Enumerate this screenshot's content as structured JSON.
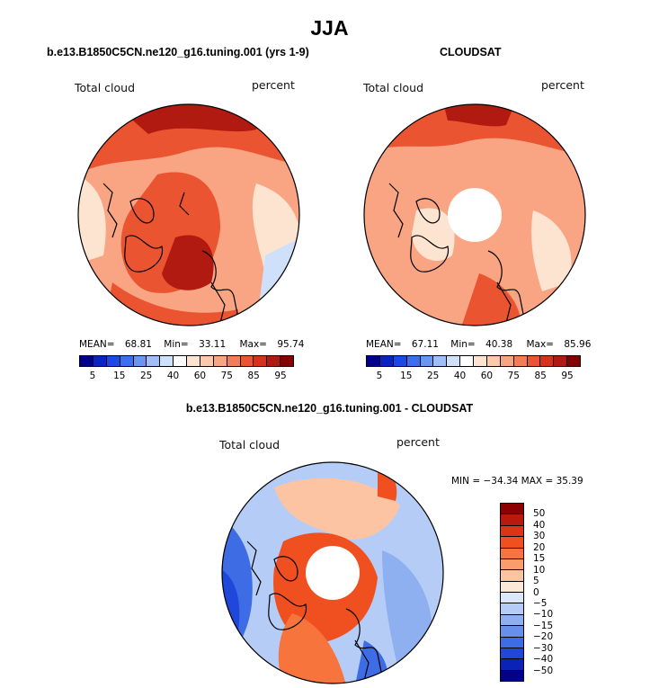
{
  "title": "JJA",
  "panels": [
    {
      "id": "model",
      "title": "b.e13.B1850C5CN.ne120_g16.tuning.001 (yrs 1-9)",
      "field_label": "Total cloud",
      "units_label": "percent",
      "mean_label": "MEAN=",
      "mean": "68.81",
      "min_label": "Min=",
      "min": "33.11",
      "max_label": "Max=",
      "max": "95.74"
    },
    {
      "id": "obs",
      "title": "CLOUDSAT",
      "field_label": "Total cloud",
      "units_label": "percent",
      "mean_label": "MEAN=",
      "mean": "67.11",
      "min_label": "Min=",
      "min": "40.38",
      "max_label": "Max=",
      "max": "85.96"
    }
  ],
  "abs_colorbar": {
    "colors": [
      "#00008b",
      "#0a24c2",
      "#1c48e4",
      "#3d6ef0",
      "#6b95f2",
      "#9fbef6",
      "#cfe1fa",
      "#ffffff",
      "#fde4d0",
      "#fcc9ab",
      "#f9a482",
      "#f47d57",
      "#ea5431",
      "#d4321a",
      "#b01a10",
      "#860000"
    ],
    "ticks": [
      "5",
      "15",
      "25",
      "40",
      "60",
      "75",
      "85",
      "95"
    ]
  },
  "diff_panel": {
    "title": "b.e13.B1850C5CN.ne120_g16.tuning.001 - CLOUDSAT",
    "field_label": "Total cloud",
    "units_label": "percent",
    "minmax_text": "MIN = −34.34  MAX =  35.39"
  },
  "diff_colorbar": {
    "colors": [
      "#8b0000",
      "#b81a0d",
      "#dc3415",
      "#f0501f",
      "#f7753d",
      "#fa9c6c",
      "#fcc4a2",
      "#fde7d6",
      "#dbe8fa",
      "#b5cdf6",
      "#8fb0f0",
      "#6690ea",
      "#3e6ce4",
      "#1f47dc",
      "#0a22b5",
      "#00008b"
    ],
    "ticks": [
      "50",
      "40",
      "30",
      "20",
      "15",
      "10",
      "5",
      "0",
      "−5",
      "−10",
      "−15",
      "−20",
      "−30",
      "−40",
      "−50"
    ]
  },
  "map_colors": {
    "ocean_light": "#fde4d0",
    "mid": "#f9a482",
    "high": "#ea5431",
    "very_high": "#b01a10",
    "blue_light": "#cfe1fa",
    "blue_mid": "#6b95f2",
    "blue_dark": "#1c48e4"
  }
}
